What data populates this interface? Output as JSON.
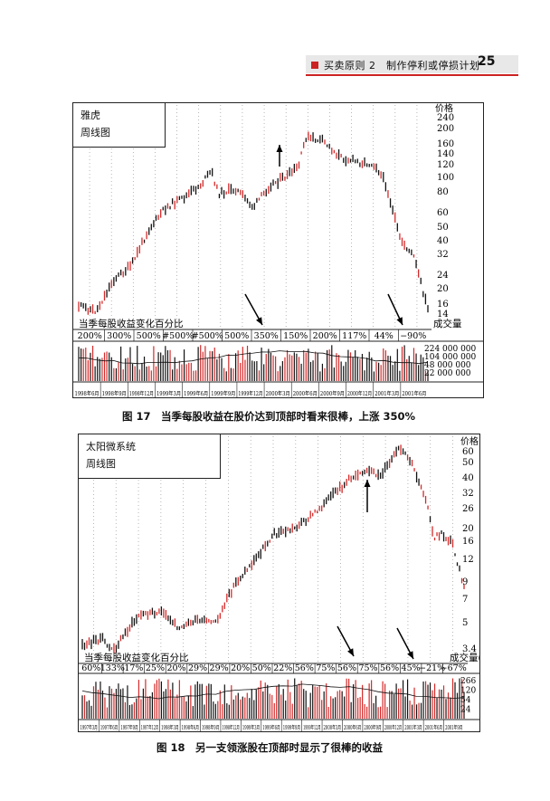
{
  "header": {
    "text": "买卖原则 2　制作停利或停损计划",
    "page": "25"
  },
  "charts": [
    {
      "id": "c1",
      "title": "雅虎",
      "subtitle": "周线图",
      "price_label": "价格",
      "price_ticks": [
        "240",
        "200",
        "160",
        "140",
        "120",
        "100",
        "80",
        "60",
        "50",
        "40",
        "32",
        "24",
        "20",
        "16",
        "14"
      ],
      "eps_label": "当季每股收益变化百分比",
      "volume_label": "成交量",
      "eps_values": [
        "200%",
        "300%",
        "500%",
        "#500%",
        "#500%",
        "500%",
        "350%",
        "150%",
        "200%",
        "117%",
        "44%",
        "−90%"
      ],
      "volume_ticks": [
        "224 000 000",
        "104 000 000",
        "48 000 000",
        "22 000 000"
      ],
      "date_labels": [
        "1998年6月",
        "1998年9月",
        "1998年12月",
        "1999年3月",
        "1999年6月",
        "1999年9月",
        "1999年12月",
        "2000年3月",
        "2000年6月",
        "2000年9月",
        "2000年12月",
        "2001年3月",
        "2001年6月"
      ],
      "caption": "图 17　当季每股收益在股价达到顶部时看来很棒，上涨 350%"
    },
    {
      "id": "c2",
      "title": "太阳微系统",
      "subtitle": "周线图",
      "price_label": "价格",
      "price_ticks": [
        "60",
        "50",
        "40",
        "32",
        "26",
        "20",
        "16",
        "12",
        "9",
        "7",
        "5",
        "3.4"
      ],
      "eps_label": "当季每股收益变化百分比",
      "volume_label": "成交量(百万)",
      "eps_values": [
        "60%",
        "133%",
        "17%",
        "25%",
        "20%",
        "29%",
        "29%",
        "20%",
        "50%",
        "22%",
        "56%",
        "75%",
        "56%",
        "75%",
        "56%",
        "45%",
        "−21%",
        "−67%"
      ],
      "volume_ticks": [
        "266",
        "120",
        "54",
        "24"
      ],
      "date_labels": [
        "1997年3月",
        "1997年6月",
        "1997年9月",
        "1997年12月",
        "1998年3月",
        "1998年6月",
        "1998年9月",
        "1998年12月",
        "1999年3月",
        "1999年6月",
        "1999年9月",
        "1999年12月",
        "2000年3月",
        "2000年6月",
        "2000年9月",
        "2000年12月",
        "2001年3月",
        "2001年6月",
        "2001年9月"
      ],
      "caption": "图 18　另一支领涨股在顶部时显示了很棒的收益"
    }
  ]
}
